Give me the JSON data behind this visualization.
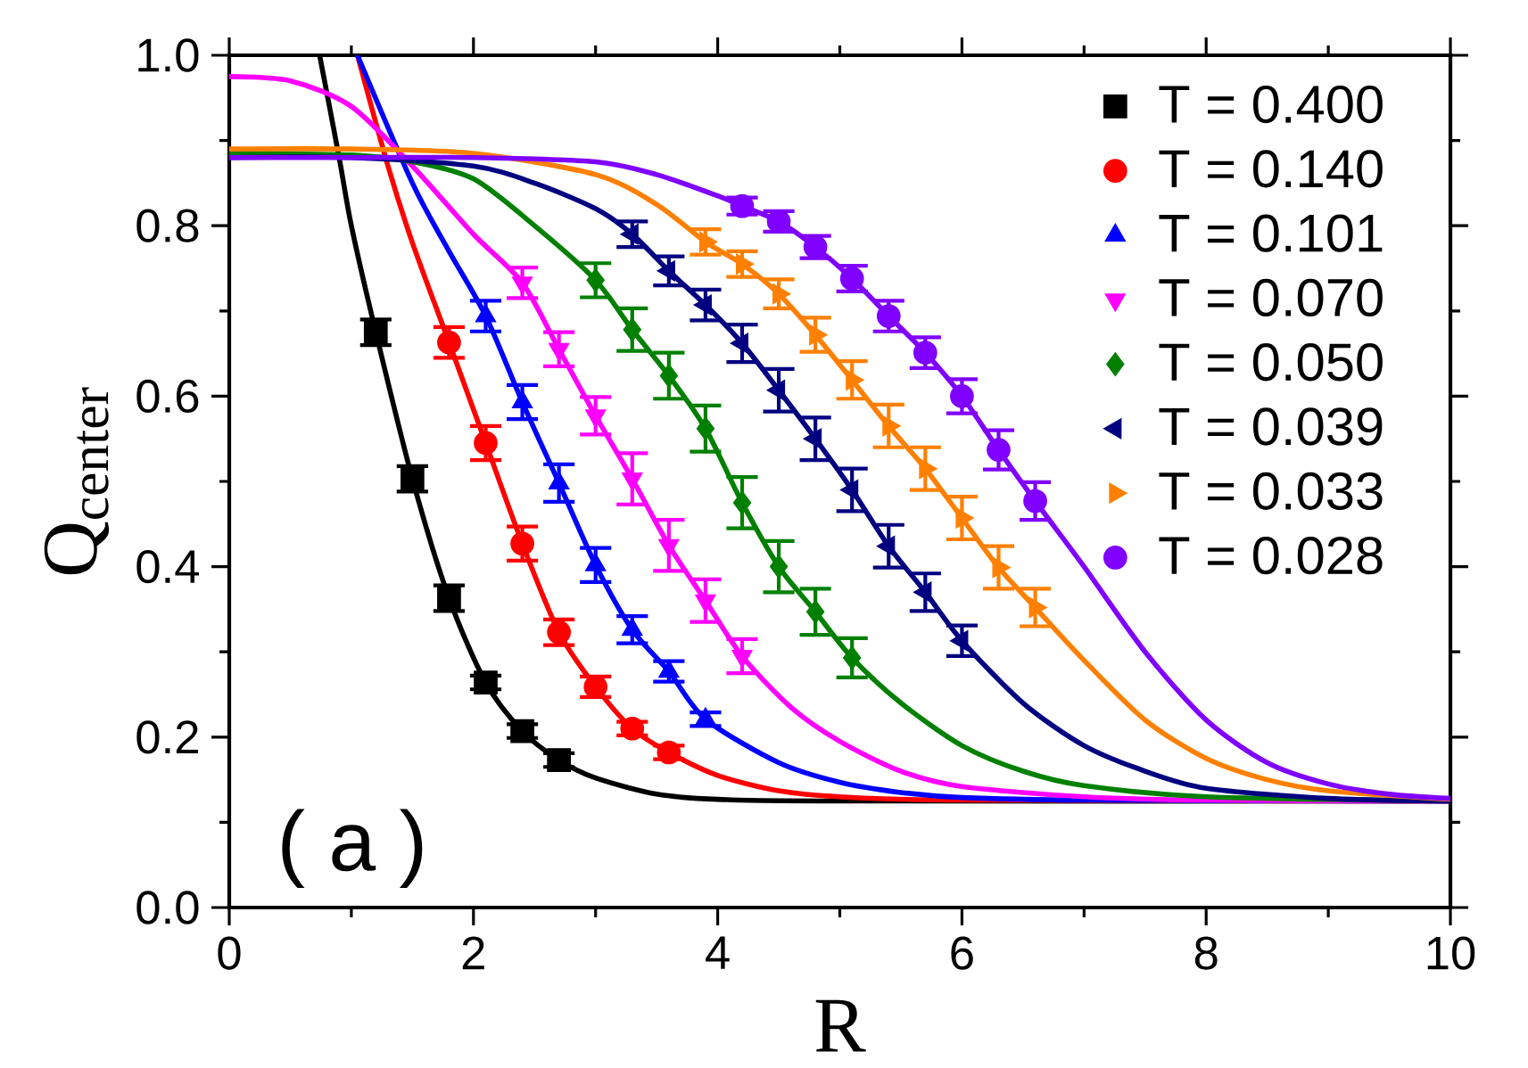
{
  "chart_data": {
    "type": "scatter",
    "xlabel": "R",
    "ylabel": "Q$_{center}$",
    "xlim": [
      0,
      10
    ],
    "ylim": [
      0,
      1.0
    ],
    "xticks": [
      0,
      {
        "value": 1,
        "label": null
      },
      2,
      {
        "value": 3,
        "label": null
      },
      4,
      {
        "value": 5,
        "label": null
      },
      6,
      {
        "value": 7,
        "label": null
      },
      8,
      {
        "value": 9,
        "label": null
      },
      10
    ],
    "yticks": [
      {
        "value": 0,
        "label": "0.0"
      },
      {
        "value": 0.1,
        "label": null
      },
      0.2,
      {
        "value": 0.3,
        "label": null
      },
      0.4,
      {
        "value": 0.5,
        "label": null
      },
      0.6,
      {
        "value": 0.7,
        "label": null
      },
      0.8,
      {
        "value": 0.9,
        "label": null
      },
      {
        "value": 1.0,
        "label": "1.0"
      }
    ],
    "legend": "top right",
    "annotations": [
      "( a )"
    ],
    "series": [
      {
        "name": "T = 0.400",
        "color": "#000000",
        "marker": "square",
        "x": [
          1.2,
          1.5,
          1.8,
          2.1,
          2.4,
          2.7
        ],
        "values": [
          0.675,
          0.503,
          0.363,
          0.264,
          0.207,
          0.173
        ],
        "errors": [
          0.015,
          0.015,
          0.015,
          0.008,
          0.008,
          0.008
        ]
      },
      {
        "name": "T = 0.140",
        "color": "#ff0000",
        "marker": "circle",
        "x": [
          1.8,
          2.1,
          2.4,
          2.7,
          3.0,
          3.3,
          3.6
        ],
        "values": [
          0.663,
          0.545,
          0.427,
          0.323,
          0.259,
          0.21,
          0.182
        ],
        "errors": [
          0.018,
          0.02,
          0.02,
          0.015,
          0.012,
          0.008,
          0.008
        ]
      },
      {
        "name": "T = 0.101",
        "color": "#0000ff",
        "marker": "triangle",
        "x": [
          2.1,
          2.4,
          2.7,
          3.0,
          3.3,
          3.6,
          3.9
        ],
        "values": [
          0.694,
          0.593,
          0.498,
          0.402,
          0.326,
          0.277,
          0.221
        ],
        "errors": [
          0.018,
          0.02,
          0.022,
          0.02,
          0.016,
          0.012,
          0.008
        ]
      },
      {
        "name": "T = 0.070",
        "color": "#ff00ff",
        "marker": "triangle-down",
        "x": [
          2.4,
          2.7,
          3.0,
          3.3,
          3.6,
          3.9,
          4.2
        ],
        "values": [
          0.733,
          0.655,
          0.577,
          0.503,
          0.425,
          0.36,
          0.295
        ],
        "errors": [
          0.018,
          0.02,
          0.022,
          0.03,
          0.03,
          0.025,
          0.02
        ]
      },
      {
        "name": "T = 0.050",
        "color": "#008000",
        "marker": "diamond",
        "x": [
          3.0,
          3.3,
          3.6,
          3.9,
          4.2,
          4.5,
          4.8,
          5.1
        ],
        "values": [
          0.736,
          0.678,
          0.624,
          0.562,
          0.475,
          0.4,
          0.347,
          0.293
        ],
        "errors": [
          0.02,
          0.025,
          0.027,
          0.027,
          0.03,
          0.03,
          0.027,
          0.023
        ]
      },
      {
        "name": "T = 0.039",
        "color": "#000080",
        "marker": "triangle-left",
        "x": [
          3.3,
          3.6,
          3.9,
          4.2,
          4.5,
          4.8,
          5.1,
          5.4,
          5.7,
          6.0
        ],
        "values": [
          0.79,
          0.747,
          0.707,
          0.662,
          0.607,
          0.55,
          0.49,
          0.424,
          0.37,
          0.313
        ],
        "errors": [
          0.015,
          0.017,
          0.018,
          0.022,
          0.025,
          0.025,
          0.025,
          0.025,
          0.022,
          0.018
        ]
      },
      {
        "name": "T = 0.033",
        "color": "#ff8000",
        "marker": "triangle-right",
        "x": [
          3.9,
          4.2,
          4.5,
          4.8,
          5.1,
          5.4,
          5.7,
          6.0,
          6.3,
          6.6
        ],
        "values": [
          0.781,
          0.755,
          0.72,
          0.672,
          0.619,
          0.565,
          0.515,
          0.457,
          0.399,
          0.352
        ],
        "errors": [
          0.015,
          0.015,
          0.017,
          0.02,
          0.022,
          0.025,
          0.025,
          0.025,
          0.025,
          0.022
        ]
      },
      {
        "name": "T = 0.028",
        "color": "#8000ff",
        "marker": "circle",
        "x": [
          4.2,
          4.5,
          4.8,
          5.1,
          5.4,
          5.7,
          6.0,
          6.3,
          6.6
        ],
        "values": [
          0.823,
          0.805,
          0.775,
          0.738,
          0.694,
          0.651,
          0.6,
          0.537,
          0.477
        ],
        "errors": [
          0.01,
          0.012,
          0.013,
          0.015,
          0.018,
          0.018,
          0.02,
          0.023,
          0.022
        ]
      },
      {
        "type": "line",
        "color": "#000000",
        "x": [
          0.74,
          0.9,
          1.0,
          1.2,
          1.5,
          1.8,
          2.1,
          2.4,
          2.7,
          3.0,
          3.5,
          4,
          5,
          10
        ],
        "values": [
          1.0,
          0.88,
          0.8,
          0.675,
          0.503,
          0.363,
          0.264,
          0.207,
          0.173,
          0.152,
          0.133,
          0.127,
          0.125,
          0.125
        ]
      },
      {
        "type": "line",
        "color": "#ff0000",
        "x": [
          1.05,
          1.3,
          1.5,
          1.8,
          2.1,
          2.4,
          2.7,
          3.0,
          3.3,
          3.6,
          4,
          4.5,
          5,
          6,
          10
        ],
        "values": [
          1.0,
          0.87,
          0.78,
          0.663,
          0.545,
          0.427,
          0.323,
          0.259,
          0.21,
          0.182,
          0.155,
          0.137,
          0.13,
          0.126,
          0.125
        ]
      },
      {
        "type": "line",
        "color": "#0000ff",
        "x": [
          1.05,
          1.5,
          1.8,
          2.1,
          2.4,
          2.7,
          3.0,
          3.3,
          3.6,
          3.9,
          4.5,
          5,
          5.5,
          6,
          7,
          10
        ],
        "values": [
          1.0,
          0.85,
          0.77,
          0.694,
          0.593,
          0.498,
          0.402,
          0.326,
          0.277,
          0.221,
          0.17,
          0.147,
          0.135,
          0.129,
          0.126,
          0.125
        ]
      },
      {
        "type": "line",
        "color": "#ff00ff",
        "x": [
          0,
          0.5,
          1.0,
          1.5,
          2.0,
          2.4,
          2.7,
          3.0,
          3.3,
          3.6,
          3.9,
          4.2,
          4.6,
          5,
          5.5,
          6,
          7,
          8,
          10
        ],
        "values": [
          0.975,
          0.97,
          0.94,
          0.87,
          0.79,
          0.733,
          0.655,
          0.577,
          0.503,
          0.425,
          0.36,
          0.295,
          0.235,
          0.195,
          0.16,
          0.142,
          0.13,
          0.126,
          0.125
        ]
      },
      {
        "type": "line",
        "color": "#008000",
        "x": [
          0,
          1,
          1.5,
          2.0,
          2.5,
          3.0,
          3.3,
          3.6,
          3.9,
          4.2,
          4.5,
          4.8,
          5.1,
          5.5,
          6,
          6.5,
          7,
          8,
          10
        ],
        "values": [
          0.885,
          0.883,
          0.875,
          0.855,
          0.8,
          0.736,
          0.678,
          0.624,
          0.562,
          0.475,
          0.4,
          0.347,
          0.293,
          0.24,
          0.19,
          0.16,
          0.143,
          0.13,
          0.125
        ]
      },
      {
        "type": "line",
        "color": "#000080",
        "x": [
          0,
          1,
          2,
          2.5,
          3.0,
          3.3,
          3.6,
          3.9,
          4.2,
          4.5,
          4.8,
          5.1,
          5.4,
          5.7,
          6.0,
          6.5,
          7,
          7.5,
          8,
          9,
          10
        ],
        "values": [
          0.88,
          0.88,
          0.87,
          0.85,
          0.82,
          0.79,
          0.747,
          0.707,
          0.662,
          0.607,
          0.55,
          0.49,
          0.424,
          0.37,
          0.313,
          0.24,
          0.19,
          0.16,
          0.14,
          0.128,
          0.125
        ]
      },
      {
        "type": "line",
        "color": "#ff8000",
        "x": [
          0,
          1,
          2,
          3,
          3.5,
          3.9,
          4.2,
          4.5,
          4.8,
          5.1,
          5.4,
          5.7,
          6.0,
          6.3,
          6.6,
          7,
          7.5,
          8,
          8.5,
          9,
          10
        ],
        "values": [
          0.89,
          0.89,
          0.885,
          0.86,
          0.825,
          0.781,
          0.755,
          0.72,
          0.672,
          0.619,
          0.565,
          0.515,
          0.457,
          0.399,
          0.352,
          0.29,
          0.22,
          0.175,
          0.15,
          0.137,
          0.127
        ]
      },
      {
        "type": "line",
        "color": "#8000ff",
        "x": [
          0,
          1,
          2,
          3,
          3.5,
          4.0,
          4.2,
          4.5,
          4.8,
          5.1,
          5.4,
          5.7,
          6.0,
          6.3,
          6.6,
          7,
          7.5,
          8,
          8.5,
          9,
          9.5,
          10
        ],
        "values": [
          0.88,
          0.88,
          0.88,
          0.875,
          0.86,
          0.835,
          0.823,
          0.805,
          0.775,
          0.738,
          0.694,
          0.651,
          0.6,
          0.537,
          0.477,
          0.4,
          0.3,
          0.22,
          0.17,
          0.145,
          0.133,
          0.128
        ]
      }
    ]
  }
}
